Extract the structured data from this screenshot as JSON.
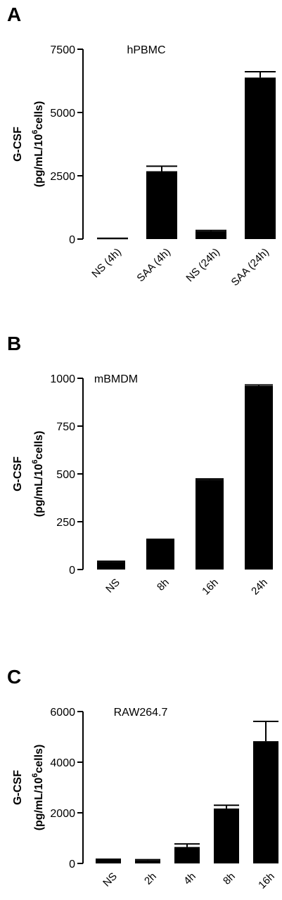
{
  "chart_data": [
    {
      "panel": "A",
      "type": "bar",
      "title": "hPBMC",
      "ylabel": "G-CSF",
      "ylabel_units": {
        "pre": "(pg/mL/10",
        "sup": "6",
        "post": "cells)"
      },
      "ylim": [
        0,
        7500
      ],
      "yticks": [
        0,
        2500,
        5000,
        7500
      ],
      "categories": [
        "NS (4h)",
        "SAA (4h)",
        "NS (24h)",
        "SAA (24h)"
      ],
      "values": [
        20,
        2680,
        310,
        6380
      ],
      "errors": [
        10,
        200,
        30,
        230
      ],
      "bar_color": "#000000"
    },
    {
      "panel": "B",
      "type": "bar",
      "title": "mBMDM",
      "ylabel": "G-CSF",
      "ylabel_units": {
        "pre": "(pg/mL/10",
        "sup": "6",
        "post": "cells)"
      },
      "ylim": [
        0,
        1000
      ],
      "yticks": [
        0,
        250,
        500,
        750,
        1000
      ],
      "categories": [
        "NS",
        "8h",
        "16h",
        "24h"
      ],
      "values": [
        40,
        155,
        470,
        960
      ],
      "errors": [
        3,
        3,
        4,
        5
      ],
      "bar_color": "#000000"
    },
    {
      "panel": "C",
      "type": "bar",
      "title": "RAW264.7",
      "ylabel": "G-CSF",
      "ylabel_units": {
        "pre": "(pg/mL/10",
        "sup": "6",
        "post": "cells)"
      },
      "ylim": [
        0,
        6000
      ],
      "yticks": [
        0,
        2000,
        4000,
        6000
      ],
      "categories": [
        "NS",
        "2h",
        "4h",
        "8h",
        "16h"
      ],
      "values": [
        150,
        120,
        650,
        2170,
        4830
      ],
      "errors": [
        15,
        30,
        120,
        130,
        780
      ],
      "bar_color": "#000000"
    }
  ]
}
